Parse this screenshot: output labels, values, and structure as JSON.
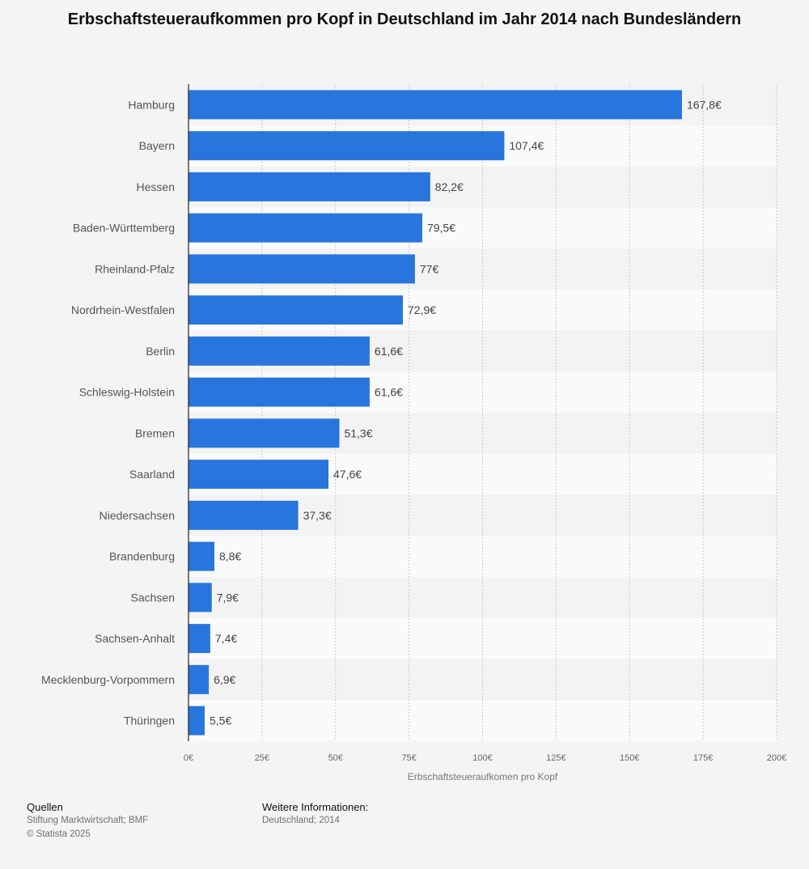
{
  "chart_data": {
    "type": "bar",
    "orientation": "horizontal",
    "title": "Erbschaftsteueraufkommen pro Kopf in Deutschland im Jahr 2014 nach Bundesländern",
    "xlabel": "Erbschaftsteueraufkomen pro Kopf",
    "ylabel": "",
    "categories": [
      "Hamburg",
      "Bayern",
      "Hessen",
      "Baden-Württemberg",
      "Rheinland-Pfalz",
      "Nordrhein-Westfalen",
      "Berlin",
      "Schleswig-Holstein",
      "Bremen",
      "Saarland",
      "Niedersachsen",
      "Brandenburg",
      "Sachsen",
      "Sachsen-Anhalt",
      "Mecklenburg-Vorpommern",
      "Thüringen"
    ],
    "values": [
      167.8,
      107.4,
      82.2,
      79.5,
      77,
      72.9,
      61.6,
      61.6,
      51.3,
      47.6,
      37.3,
      8.8,
      7.9,
      7.4,
      6.9,
      5.5
    ],
    "value_labels": [
      "167,8€",
      "107,4€",
      "82,2€",
      "79,5€",
      "77€",
      "72,9€",
      "61,6€",
      "61,6€",
      "51,3€",
      "47,6€",
      "37,3€",
      "8,8€",
      "7,9€",
      "7,4€",
      "6,9€",
      "5,5€"
    ],
    "xlim": [
      0,
      200
    ],
    "xticks": [
      0,
      25,
      50,
      75,
      100,
      125,
      150,
      175,
      200
    ],
    "xtick_labels": [
      "0€",
      "25€",
      "50€",
      "75€",
      "100€",
      "125€",
      "150€",
      "175€",
      "200€"
    ],
    "grid": true,
    "bar_color": "#2876dd"
  },
  "footer": {
    "sources_heading": "Quellen",
    "sources_text": "Stiftung Marktwirtschaft; BMF",
    "copyright": "© Statista 2025",
    "info_heading": "Weitere Informationen:",
    "info_text": "Deutschland; 2014"
  }
}
